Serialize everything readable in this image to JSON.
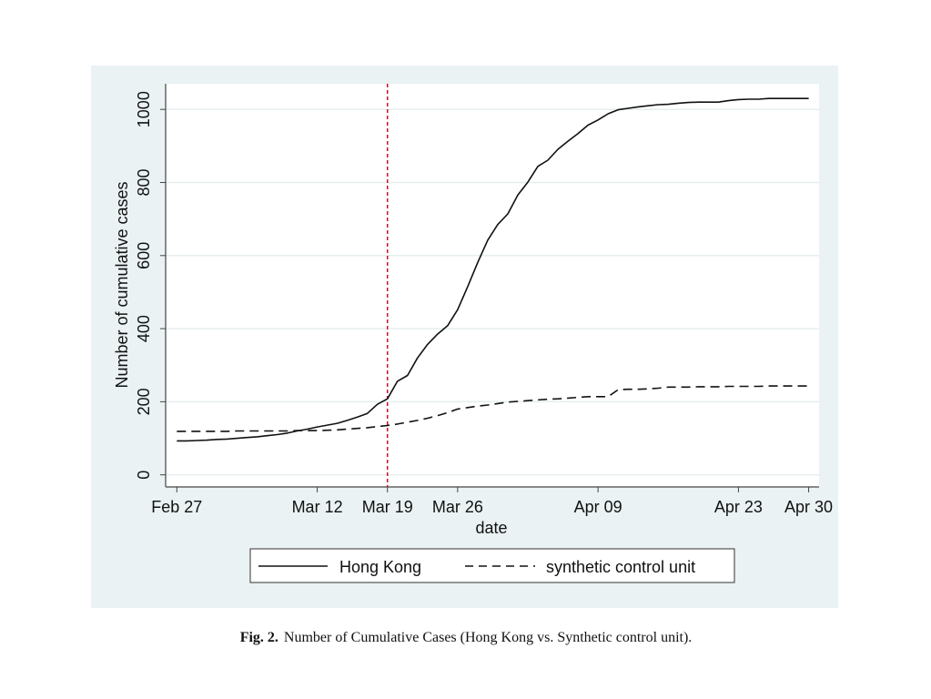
{
  "chart_data": {
    "type": "line",
    "title": "",
    "xlabel": "date",
    "ylabel": "Number of cumulative cases",
    "x_start": "Feb 27",
    "x_days": [
      0,
      1,
      2,
      3,
      4,
      5,
      6,
      7,
      8,
      9,
      10,
      11,
      12,
      13,
      14,
      15,
      16,
      17,
      18,
      19,
      20,
      21,
      22,
      23,
      24,
      25,
      26,
      27,
      28,
      29,
      30,
      31,
      32,
      33,
      34,
      35,
      36,
      37,
      38,
      39,
      40,
      41,
      42,
      43,
      44,
      45,
      46,
      47,
      48,
      49,
      50,
      51,
      52,
      53,
      54,
      55,
      56,
      57,
      58,
      59,
      60,
      61,
      62,
      63
    ],
    "xlim": [
      0,
      63
    ],
    "ylim": [
      0,
      1050
    ],
    "xticks": [
      {
        "day": 0,
        "label": "Feb 27"
      },
      {
        "day": 14,
        "label": "Mar 12"
      },
      {
        "day": 21,
        "label": "Mar 19"
      },
      {
        "day": 28,
        "label": "Mar 26"
      },
      {
        "day": 42,
        "label": "Apr 09"
      },
      {
        "day": 56,
        "label": "Apr 23"
      },
      {
        "day": 63,
        "label": "Apr 30"
      }
    ],
    "yticks": [
      {
        "value": 0,
        "label": "0"
      },
      {
        "value": 200,
        "label": "200"
      },
      {
        "value": 400,
        "label": "400"
      },
      {
        "value": 600,
        "label": "600"
      },
      {
        "value": 800,
        "label": "800"
      },
      {
        "value": 1000,
        "label": "1000"
      }
    ],
    "grid": true,
    "intervention_day": 21,
    "intervention_color": "#c8102e",
    "series": [
      {
        "name": "Hong Kong",
        "style": "solid",
        "values": [
          93,
          93,
          94,
          95,
          97,
          98,
          100,
          102,
          104,
          107,
          110,
          114,
          120,
          125,
          131,
          136,
          141,
          149,
          158,
          168,
          193,
          208,
          256,
          272,
          320,
          357,
          385,
          408,
          452,
          515,
          581,
          642,
          685,
          714,
          766,
          801,
          844,
          861,
          891,
          913,
          934,
          957,
          971,
          988,
          999,
          1003,
          1007,
          1010,
          1013,
          1014,
          1017,
          1019,
          1020,
          1020,
          1020,
          1024,
          1027,
          1028,
          1028,
          1030,
          1030,
          1030,
          1030,
          1030
        ]
      },
      {
        "name": "synthetic control unit",
        "style": "dashed",
        "values": [
          119,
          119,
          119,
          119,
          119,
          119,
          120,
          120,
          120,
          120,
          120,
          120,
          121,
          121,
          121,
          122,
          123,
          125,
          127,
          129,
          132,
          135,
          139,
          144,
          149,
          155,
          162,
          170,
          180,
          184,
          188,
          191,
          195,
          199,
          201,
          203,
          205,
          207,
          208,
          210,
          212,
          214,
          214,
          214,
          233,
          234,
          234,
          235,
          237,
          240,
          240,
          240,
          241,
          241,
          241,
          242,
          242,
          242,
          242,
          243,
          243,
          243,
          243,
          243
        ]
      }
    ],
    "legend": {
      "placement": "bottom",
      "entries": [
        "Hong Kong",
        "synthetic control unit"
      ]
    }
  },
  "caption": {
    "label": "Fig. 2.",
    "text": "Number of Cumulative Cases (Hong Kong vs. Synthetic control unit)."
  },
  "colors": {
    "panel_bg": "#eaf2f3",
    "plot_bg": "#ffffff",
    "grid": "#e6eeee",
    "line": "#111111"
  }
}
